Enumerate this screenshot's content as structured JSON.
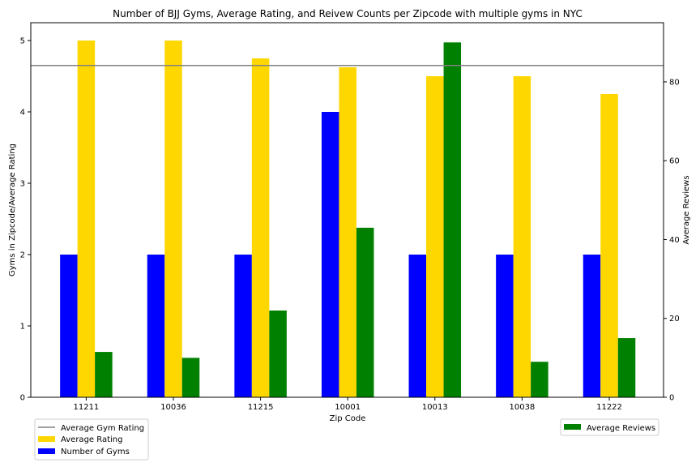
{
  "chart_data": {
    "type": "bar",
    "title": "Number of BJJ Gyms, Average Rating, and Reivew Counts per Zipcode with multiple gyms in NYC",
    "xlabel": "Zip Code",
    "ylabel_left": "Gyms in Zipcode/Average Rating",
    "ylabel_right": "Average Reviews",
    "categories": [
      "11211",
      "10036",
      "11215",
      "10001",
      "10013",
      "10038",
      "11222"
    ],
    "ylim_left": [
      0,
      5.25
    ],
    "ylim_right": [
      0,
      95
    ],
    "yticks_left": [
      "0",
      "1",
      "2",
      "3",
      "4",
      "5"
    ],
    "yticks_right": [
      "0",
      "20",
      "40",
      "60",
      "80"
    ],
    "series": [
      {
        "name": "Number of Gyms",
        "axis": "left",
        "color": "#0000ff",
        "values": [
          2,
          2,
          2,
          4,
          2,
          2,
          2
        ]
      },
      {
        "name": "Average Rating",
        "axis": "left",
        "color": "#ffd700",
        "values": [
          5.0,
          5.0,
          4.75,
          4.625,
          4.5,
          4.5,
          4.25
        ]
      },
      {
        "name": "Average Reviews",
        "axis": "right",
        "color": "#008000",
        "values": [
          11.5,
          10.0,
          22.0,
          43.0,
          90.0,
          9.0,
          15.0
        ]
      }
    ],
    "reference_line": {
      "name": "Average Gym Rating",
      "axis": "left",
      "value": 4.65,
      "color": "#808080"
    },
    "grid": false,
    "legend_left": [
      "Average Gym Rating",
      "Average Rating",
      "Number of Gyms"
    ],
    "legend_right": [
      "Average Reviews"
    ]
  }
}
